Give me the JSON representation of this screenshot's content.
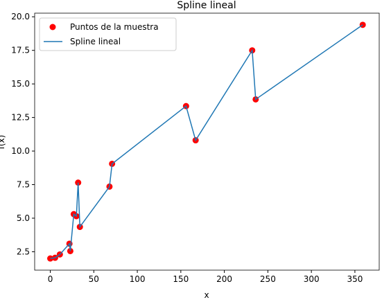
{
  "chart_data": {
    "type": "line",
    "title": "Spline lineal",
    "xlabel": "x",
    "ylabel": "f(x)",
    "x": [
      0,
      5.5,
      11,
      22,
      23,
      27,
      30,
      32,
      34,
      68,
      71,
      156,
      167,
      232,
      236,
      359
    ],
    "series": [
      {
        "name": "Puntos de la muestra",
        "color": "#ff0000",
        "kind": "scatter",
        "values": [
          2.0,
          2.05,
          2.3,
          3.1,
          2.55,
          5.3,
          5.15,
          7.65,
          4.35,
          7.35,
          9.05,
          13.35,
          10.8,
          17.5,
          13.85,
          19.4
        ]
      },
      {
        "name": "Spline lineal",
        "color": "#1f77b4",
        "kind": "line",
        "values": [
          2.0,
          2.05,
          2.3,
          3.1,
          2.55,
          5.3,
          5.15,
          7.65,
          4.35,
          7.35,
          9.05,
          13.35,
          10.8,
          17.5,
          13.85,
          19.4
        ]
      }
    ],
    "xlim": [
      -17.95,
      377.95
    ],
    "xticks": [
      0,
      50,
      100,
      150,
      200,
      250,
      300,
      350
    ],
    "ylim": [
      1.13,
      20.27
    ],
    "yticks": [
      2.5,
      {
        "value": 5,
        "label": "5.0"
      },
      7.5,
      {
        "value": 10,
        "label": "10.0"
      },
      12.5,
      {
        "value": 15,
        "label": "15.0"
      },
      17.5,
      {
        "value": 20,
        "label": "20.0"
      }
    ],
    "legend": "upper left"
  }
}
